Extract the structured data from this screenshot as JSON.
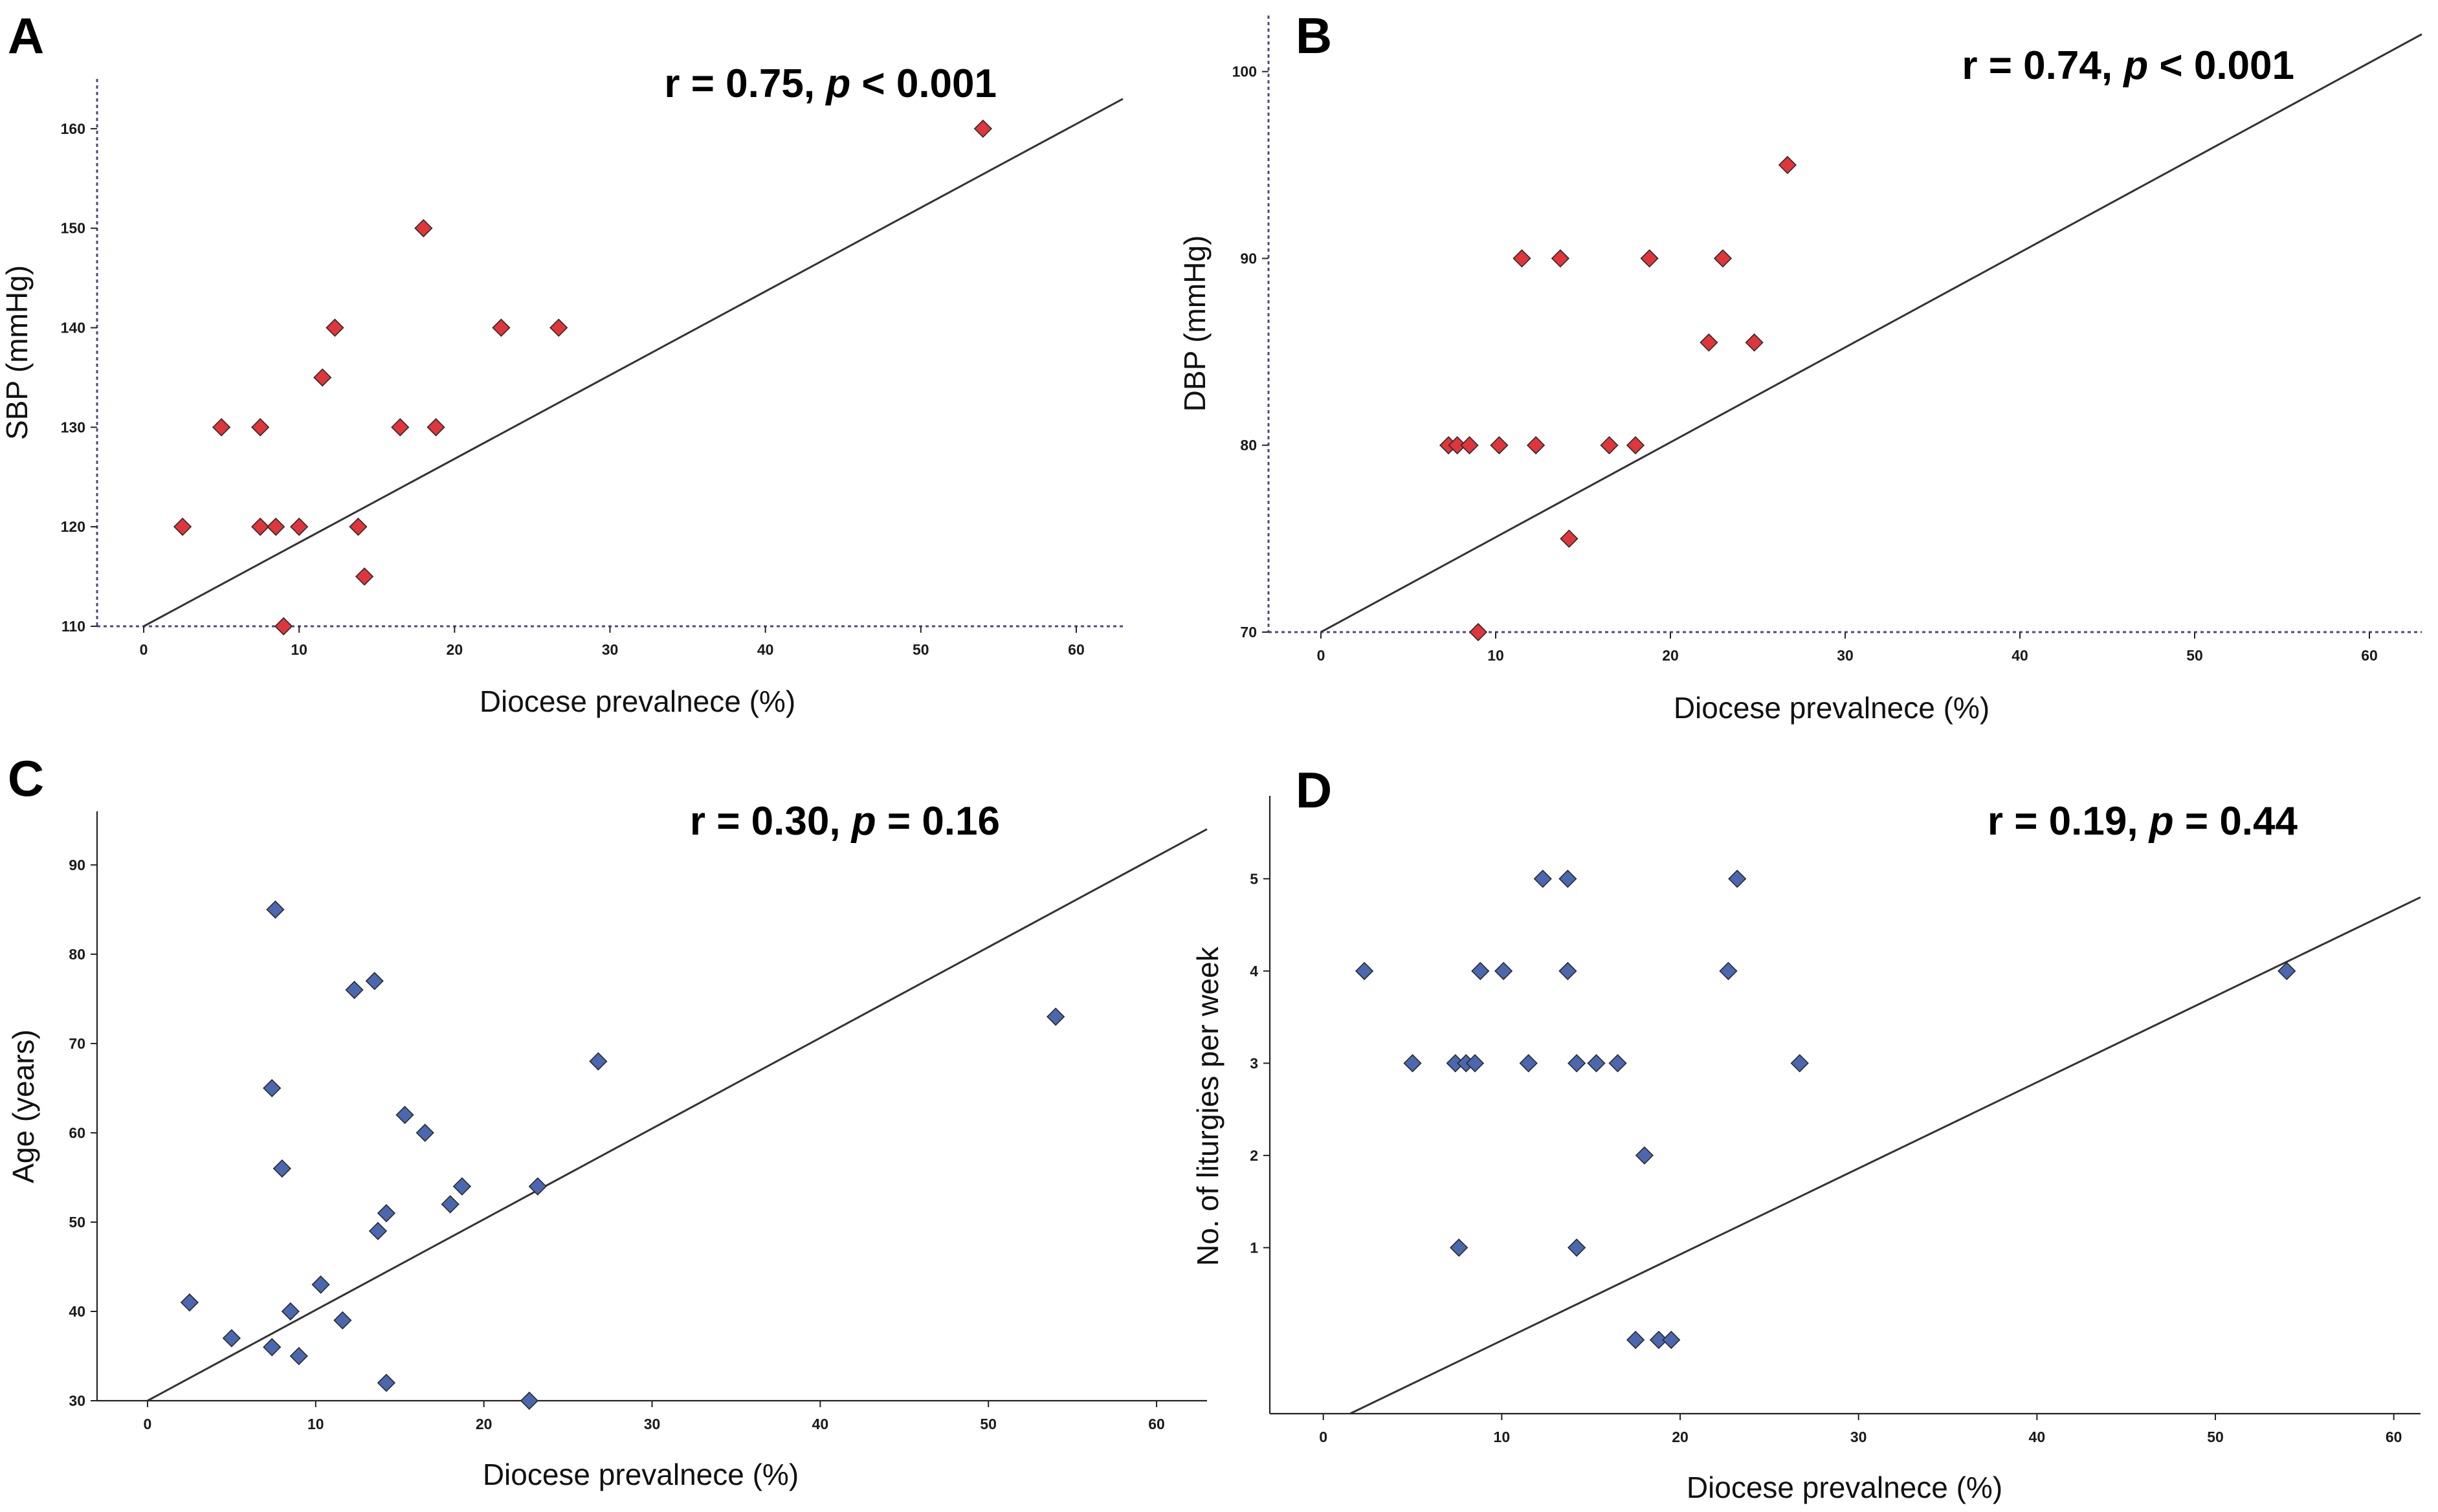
{
  "chart_data": [
    {
      "type": "scatter",
      "panel": "A",
      "stat_r": "r = 0.75, ",
      "stat_p_symbol": "p",
      "stat_p_rest": " < 0.001",
      "xlabel": "Diocese prevalnece (%)",
      "ylabel": "SBP (mmHg)",
      "xlim": [
        -3,
        63
      ],
      "ylim": [
        110,
        165
      ],
      "xticks": [
        0,
        10,
        20,
        30,
        40,
        50,
        60
      ],
      "yticks": [
        110,
        120,
        130,
        140,
        150,
        160
      ],
      "marker_color": "#e0353a",
      "fit_line": {
        "x": [
          0,
          63
        ],
        "y": [
          110,
          163
        ]
      },
      "points": {
        "x": [
          2.5,
          5,
          7.5,
          7.5,
          8.5,
          9,
          10,
          11.5,
          12.3,
          13.8,
          14.2,
          16.5,
          18,
          18.8,
          23,
          26.7,
          54
        ],
        "y": [
          120,
          130,
          130,
          120,
          120,
          110,
          120,
          135,
          140,
          120,
          115,
          130,
          150,
          130,
          140,
          140,
          160
        ]
      }
    },
    {
      "type": "scatter",
      "panel": "B",
      "stat_r": "r = 0.74, ",
      "stat_p_symbol": "p",
      "stat_p_rest": " < 0.001",
      "xlabel": "Diocese prevalnece (%)",
      "ylabel": "DBP (mmHg)",
      "xlim": [
        -3,
        63
      ],
      "ylim": [
        70,
        103
      ],
      "xticks": [
        0,
        10,
        20,
        30,
        40,
        50,
        60
      ],
      "yticks": [
        70,
        80,
        90,
        100
      ],
      "marker_color": "#e0353a",
      "fit_line": {
        "x": [
          0,
          63
        ],
        "y": [
          70,
          102
        ]
      },
      "points": {
        "x": [
          7.3,
          7.8,
          8.5,
          9,
          10.2,
          11.5,
          12.3,
          13.7,
          14.2,
          16.5,
          18,
          18.8,
          22.2,
          23,
          24.8,
          26.7
        ],
        "y": [
          80,
          80,
          80,
          70,
          80,
          90,
          80,
          90,
          75,
          80,
          80,
          90,
          85.5,
          90,
          85.5,
          95
        ]
      }
    },
    {
      "type": "scatter",
      "panel": "C",
      "stat_r": "r = 0.30, ",
      "stat_p_symbol": "p",
      "stat_p_rest": " = 0.16",
      "xlabel": "Diocese prevalnece (%)",
      "ylabel": "Age (years)",
      "xlim": [
        -3,
        63
      ],
      "ylim": [
        30,
        96
      ],
      "xticks": [
        0,
        10,
        20,
        30,
        40,
        50,
        60
      ],
      "yticks": [
        30,
        40,
        50,
        60,
        70,
        80,
        90
      ],
      "marker_color": "#4a67b0",
      "fit_line": {
        "x": [
          0,
          63
        ],
        "y": [
          30,
          94
        ]
      },
      "points": {
        "x": [
          2.5,
          5,
          7.4,
          7.4,
          7.6,
          8,
          8.5,
          9,
          10.3,
          11.6,
          12.3,
          13.5,
          13.7,
          14.2,
          14.2,
          15.3,
          16.5,
          18,
          18.7,
          22.7,
          23.2,
          26.8,
          54
        ],
        "y": [
          41,
          37,
          36,
          65,
          85,
          56,
          40,
          35,
          43,
          39,
          76,
          77,
          49,
          51,
          32,
          62,
          60,
          52,
          54,
          30,
          54,
          68,
          73
        ]
      }
    },
    {
      "type": "scatter",
      "panel": "D",
      "stat_r": "r = 0.19, ",
      "stat_p_symbol": "p",
      "stat_p_rest": " = 0.44",
      "xlabel": "Diocese prevalnece (%)",
      "ylabel": "No. of liturgies per week",
      "xlim": [
        -3,
        61.5
      ],
      "ylim": [
        -0.8,
        5.9
      ],
      "xticks": [
        0,
        10,
        20,
        30,
        40,
        50,
        60
      ],
      "yticks": [
        1,
        2,
        3,
        4,
        5
      ],
      "marker_color": "#4a67b0",
      "fit_line": {
        "x": [
          1.5,
          61.5
        ],
        "y": [
          -0.8,
          4.8
        ]
      },
      "points": {
        "x": [
          2.3,
          5,
          7.4,
          7.6,
          8,
          8.5,
          8.8,
          10.1,
          11.5,
          12.3,
          13.7,
          13.7,
          14.2,
          14.2,
          15.3,
          16.5,
          17.5,
          18,
          18.8,
          19.5,
          22.7,
          23.2,
          26.7,
          54
        ],
        "y": [
          4,
          3,
          3,
          1,
          3,
          3,
          4,
          4,
          3,
          5,
          5,
          4,
          3,
          1,
          3,
          3,
          0,
          2,
          0,
          0,
          4,
          5,
          3,
          4
        ]
      }
    }
  ]
}
